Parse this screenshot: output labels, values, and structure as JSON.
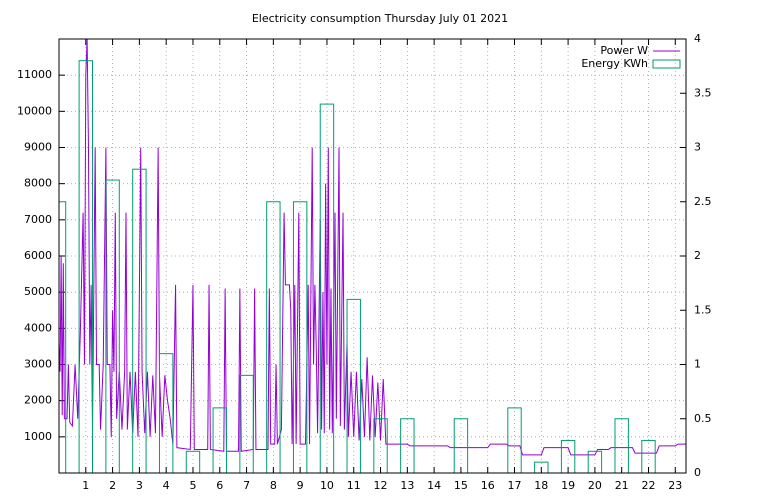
{
  "chart_data": {
    "type": "line",
    "title": "Electricity consumption Thursday July 01 2021",
    "xlim": [
      0,
      23.4
    ],
    "xticks": [
      1,
      2,
      3,
      4,
      5,
      6,
      7,
      8,
      9,
      10,
      11,
      12,
      13,
      14,
      15,
      16,
      17,
      18,
      19,
      20,
      21,
      22,
      23
    ],
    "ylim": [
      0,
      12000
    ],
    "yticks": [
      1000,
      2000,
      3000,
      4000,
      5000,
      6000,
      7000,
      8000,
      9000,
      10000,
      11000
    ],
    "y2lim": [
      0,
      4
    ],
    "y2ticks": [
      0,
      0.5,
      1,
      1.5,
      2,
      2.5,
      3,
      3.5,
      4
    ],
    "grid": true,
    "legend": "top right",
    "series": [
      {
        "name": "Power W",
        "color": "#9400d3",
        "style": "line",
        "x": [
          0,
          0.04,
          0.08,
          0.12,
          0.16,
          0.2,
          0.3,
          0.35,
          0.4,
          0.5,
          0.6,
          0.7,
          0.8,
          0.9,
          0.95,
          1.0,
          1.05,
          1.1,
          1.15,
          1.2,
          1.25,
          1.35,
          1.4,
          1.5,
          1.55,
          1.65,
          1.75,
          1.8,
          1.9,
          1.95,
          2.0,
          2.05,
          2.1,
          2.15,
          2.25,
          2.35,
          2.45,
          2.5,
          2.55,
          2.65,
          2.75,
          2.85,
          2.95,
          3.05,
          3.1,
          3.2,
          3.3,
          3.4,
          3.5,
          3.6,
          3.7,
          3.75,
          3.85,
          3.95,
          4.05,
          4.15,
          4.25,
          4.35,
          4.4,
          4.9,
          5.0,
          5.05,
          5.55,
          5.6,
          5.65,
          6.15,
          6.2,
          6.25,
          6.7,
          6.75,
          6.8,
          7.25,
          7.3,
          7.35,
          7.8,
          7.85,
          7.9,
          8.05,
          8.1,
          8.15,
          8.3,
          8.4,
          8.45,
          8.6,
          8.65,
          8.7,
          8.8,
          8.85,
          8.95,
          9.0,
          9.2,
          9.3,
          9.35,
          9.45,
          9.5,
          9.55,
          9.6,
          9.65,
          9.75,
          9.8,
          9.85,
          9.9,
          9.95,
          10.0,
          10.05,
          10.1,
          10.15,
          10.2,
          10.3,
          10.35,
          10.45,
          10.5,
          10.6,
          10.65,
          10.75,
          10.8,
          10.9,
          11.0,
          11.1,
          11.2,
          11.3,
          11.4,
          11.5,
          11.6,
          11.7,
          11.8,
          11.9,
          12.0,
          12.1,
          12.2,
          13.0,
          13.1,
          14.5,
          14.6,
          16.0,
          16.1,
          16.7,
          16.8,
          17.2,
          17.3,
          18.0,
          18.1,
          19.0,
          19.1,
          20.0,
          20.1,
          20.5,
          20.6,
          21.4,
          21.5,
          22.3,
          22.4,
          23.0,
          23.1,
          23.4
        ],
        "values": [
          3600,
          2800,
          6000,
          1600,
          5800,
          1500,
          1500,
          3000,
          1400,
          1300,
          3000,
          1500,
          4000,
          7200,
          3000,
          11000,
          12000,
          9000,
          3000,
          5200,
          1200,
          9000,
          3000,
          3000,
          1200,
          3000,
          9000,
          3000,
          3000,
          1000,
          4500,
          2800,
          7200,
          1500,
          2800,
          1200,
          2800,
          7200,
          1200,
          2800,
          1100,
          2800,
          1000,
          9000,
          2800,
          1100,
          2800,
          1000,
          2700,
          1100,
          9000,
          2700,
          1000,
          2700,
          2000,
          1500,
          800,
          5200,
          700,
          650,
          5200,
          650,
          650,
          5200,
          650,
          600,
          5100,
          600,
          600,
          5100,
          600,
          650,
          5100,
          650,
          650,
          5100,
          800,
          800,
          3000,
          800,
          1200,
          7200,
          5200,
          5200,
          4500,
          800,
          5200,
          800,
          7200,
          800,
          800,
          5200,
          800,
          9000,
          3000,
          5200,
          3500,
          1100,
          7000,
          1200,
          5000,
          1100,
          8000,
          3000,
          9000,
          1200,
          5100,
          1100,
          7200,
          1500,
          9000,
          1300,
          7200,
          1200,
          3600,
          1000,
          2800,
          1000,
          2800,
          900,
          2600,
          1000,
          3200,
          900,
          2700,
          1000,
          2500,
          900,
          2600,
          800,
          800,
          750,
          750,
          700,
          700,
          800,
          800,
          750,
          750,
          500,
          500,
          700,
          700,
          500,
          500,
          650,
          650,
          700,
          700,
          550,
          550,
          750,
          750,
          800,
          800
        ]
      },
      {
        "name": "Energy KWh",
        "color": "#009e73",
        "style": "boxes",
        "axis": "y2",
        "x": [
          0,
          1,
          2,
          3,
          4,
          5,
          6,
          7,
          8,
          9,
          10,
          11,
          12,
          13,
          14,
          15,
          16,
          17,
          18,
          19,
          20,
          21,
          22,
          23
        ],
        "values": [
          2.5,
          3.8,
          2.7,
          2.8,
          1.1,
          0.2,
          0.6,
          0.9,
          2.5,
          2.5,
          3.4,
          1.6,
          0.5,
          0.5,
          0,
          0.5,
          0,
          0.6,
          0.1,
          0.3,
          0.2,
          0.5,
          0.3,
          0
        ]
      }
    ]
  }
}
